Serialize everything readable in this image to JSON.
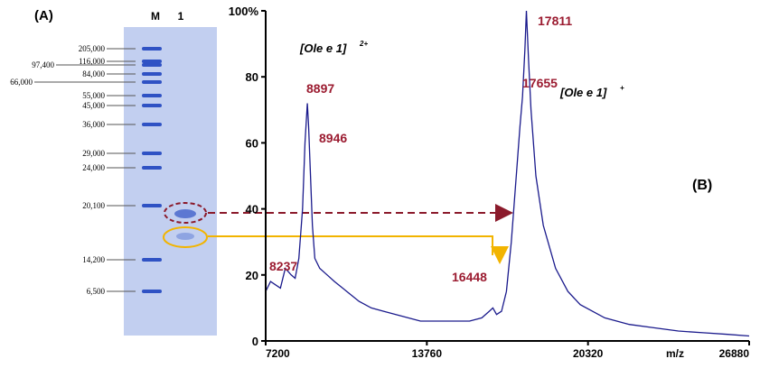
{
  "panel_a": {
    "label": "(A)",
    "lanes": [
      "M",
      "1"
    ],
    "markers": [
      "205,000",
      "116,000",
      "97,400",
      "84,000",
      "66,000",
      "55,000",
      "45,000",
      "36,000",
      "29,000",
      "24,000",
      "20,100",
      "14,200",
      "6,500"
    ]
  },
  "chart_data": {
    "type": "line",
    "panel_label": "(B)",
    "xlabel": "m/z",
    "xlim": [
      7200,
      26880
    ],
    "xticks": [
      7200,
      13760,
      20320,
      26880
    ],
    "ylim": [
      0,
      100
    ],
    "yticks": [
      0,
      20,
      40,
      60,
      80,
      {
        "value": 100,
        "label": "100%"
      }
    ],
    "series": [
      {
        "color": "#1a1a8c",
        "x": [
          7200,
          7400,
          7600,
          7800,
          8000,
          8237,
          8400,
          8550,
          8700,
          8800,
          8897,
          8946,
          9000,
          9100,
          9200,
          9400,
          9700,
          10000,
          10500,
          11000,
          11500,
          12000,
          12500,
          13000,
          13500,
          14000,
          14500,
          15000,
          15500,
          16000,
          16300,
          16448,
          16600,
          16800,
          17000,
          17200,
          17400,
          17550,
          17655,
          17750,
          17811,
          17900,
          18000,
          18200,
          18500,
          19000,
          19500,
          20000,
          21000,
          22000,
          23000,
          24000,
          25000,
          26000,
          26880
        ],
        "values": [
          15,
          18,
          17,
          16,
          22,
          20,
          19,
          25,
          40,
          60,
          72,
          65,
          55,
          35,
          25,
          22,
          20,
          18,
          15,
          12,
          10,
          9,
          8,
          7,
          6,
          6,
          6,
          6,
          6,
          7,
          9,
          10,
          8,
          9,
          15,
          30,
          50,
          65,
          74,
          88,
          100,
          85,
          70,
          50,
          35,
          22,
          15,
          11,
          7,
          5,
          4,
          3,
          2.5,
          2,
          1.5
        ]
      }
    ],
    "peaks": [
      8237,
      8897,
      8946,
      16448,
      17655,
      17811
    ],
    "ion_labels": [
      {
        "text": "[Ole e 1]",
        "charge": "2+"
      },
      {
        "text": "[Ole e 1]",
        "charge": "+"
      }
    ]
  }
}
